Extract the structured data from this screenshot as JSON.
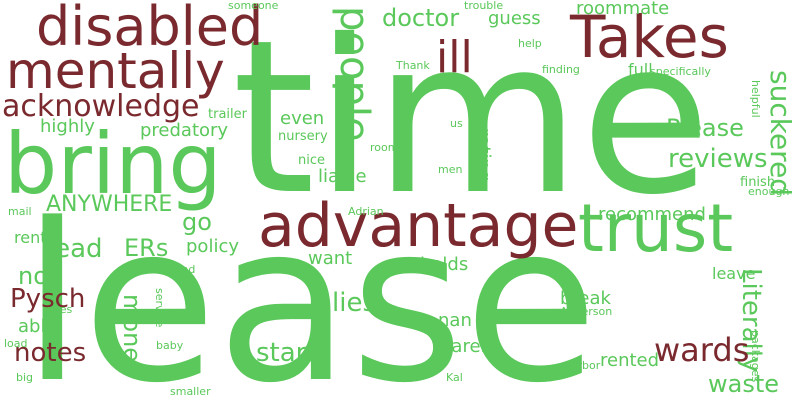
{
  "colors": {
    "green": "#5ac85a",
    "maroon": "#7a2a2e",
    "background": "#ffffff"
  },
  "words": {
    "time": "time",
    "lease": "lease",
    "bring": "bring",
    "advantage": "advantage",
    "trust": "trust",
    "takes": "Takes",
    "disabled": "disabled",
    "mentally": "mentally",
    "people": "people",
    "ill": "ill",
    "acknowledge": "acknowledge",
    "doctor": "doctor",
    "please": "Please",
    "guess": "guess",
    "roommate": "roommate",
    "someone": "someone",
    "trouble": "trouble",
    "help": "help",
    "thank": "Thank",
    "finding": "finding",
    "full": "full",
    "specifically": "specifically",
    "helpful": "helpful",
    "suckered": "suckered",
    "reviews": "reviews",
    "highly": "highly",
    "predatory": "predatory",
    "trailer": "trailer",
    "even": "even",
    "us": "us",
    "nursery": "nursery",
    "room": "room",
    "rating": "rating",
    "nice": "nice",
    "men": "men",
    "liable": "liable",
    "finish": "finish",
    "enough": "enough",
    "anywhere": "ANYWHERE",
    "go": "go",
    "recommend": "recommend",
    "mail": "mail",
    "adrian": "Adrian",
    "rent": "rent",
    "read": "read",
    "ers": "ERs",
    "policy": "policy",
    "non": "non",
    "want": "want",
    "holds": "holds",
    "husband": "husband",
    "leave": "leave",
    "pysch": "Pysch",
    "money": "money",
    "ones": "ones",
    "service": "service",
    "lies": "lies",
    "break": "break",
    "able": "able",
    "anderson": "Anderson",
    "literally": "Literally",
    "nan": "nan",
    "notes": "notes",
    "star": "star",
    "wards": "wards",
    "load": "load",
    "baby": "baby",
    "barely": "barely",
    "packages": "packages",
    "big": "big",
    "arbor": "Arbor",
    "rented": "rented",
    "waste": "waste",
    "kal": "Kal",
    "smaller": "smaller"
  }
}
